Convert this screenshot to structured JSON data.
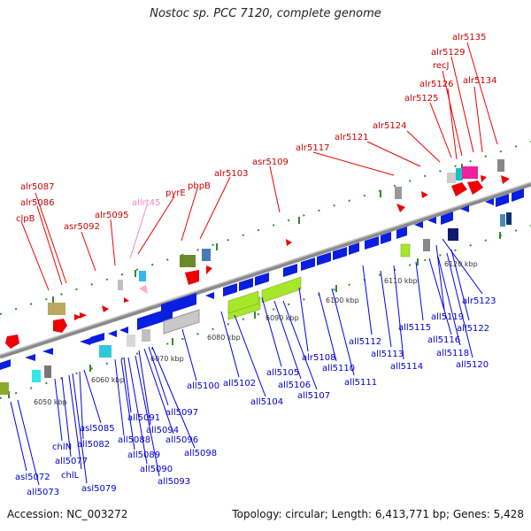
{
  "title": "Nostoc sp. PCC 7120, complete genome",
  "footer": {
    "accession": "Accession: NC_003272",
    "summary": "Topology: circular; Length: 6,413,771 bp; Genes: 5,428"
  },
  "colors": {
    "forward_label": "#cc0000",
    "reverse_label": "#0000cc",
    "trna_label": "#ee88cc",
    "backbone": "#888888"
  },
  "kbp_ticks": [
    "6050 kbp",
    "6060 kbp",
    "6070 kbp",
    "6080 kbp",
    "6090 kbp",
    "6100 kbp",
    "6110 kbp",
    "6120 kbp"
  ],
  "top_labels": [
    "alr5135",
    "alr5129",
    "recJ",
    "alr5126",
    "alr5134",
    "alr5125",
    "alr5124",
    "alr5121",
    "alr5117",
    "asr5109",
    "alr5103",
    "pbpB",
    "pyrE",
    "allrt45",
    "alr5087",
    "alr5086",
    "clpB",
    "alr5095",
    "asr5092"
  ],
  "bottom_labels": [
    "alr5123",
    "all5119",
    "all5122",
    "all5115",
    "all5116",
    "all5118",
    "all5120",
    "all5112",
    "all5113",
    "all5114",
    "alr5108",
    "all5110",
    "all5111",
    "all5105",
    "all5106",
    "all5107",
    "all5102",
    "all5104",
    "all5100",
    "all5097",
    "all5094",
    "all5096",
    "all5098",
    "all5091",
    "all5088",
    "all5089",
    "all5090",
    "all5093",
    "asl5085",
    "all5082",
    "chlN",
    "all5077",
    "chlL",
    "asl5079",
    "asl5072",
    "all5073"
  ]
}
